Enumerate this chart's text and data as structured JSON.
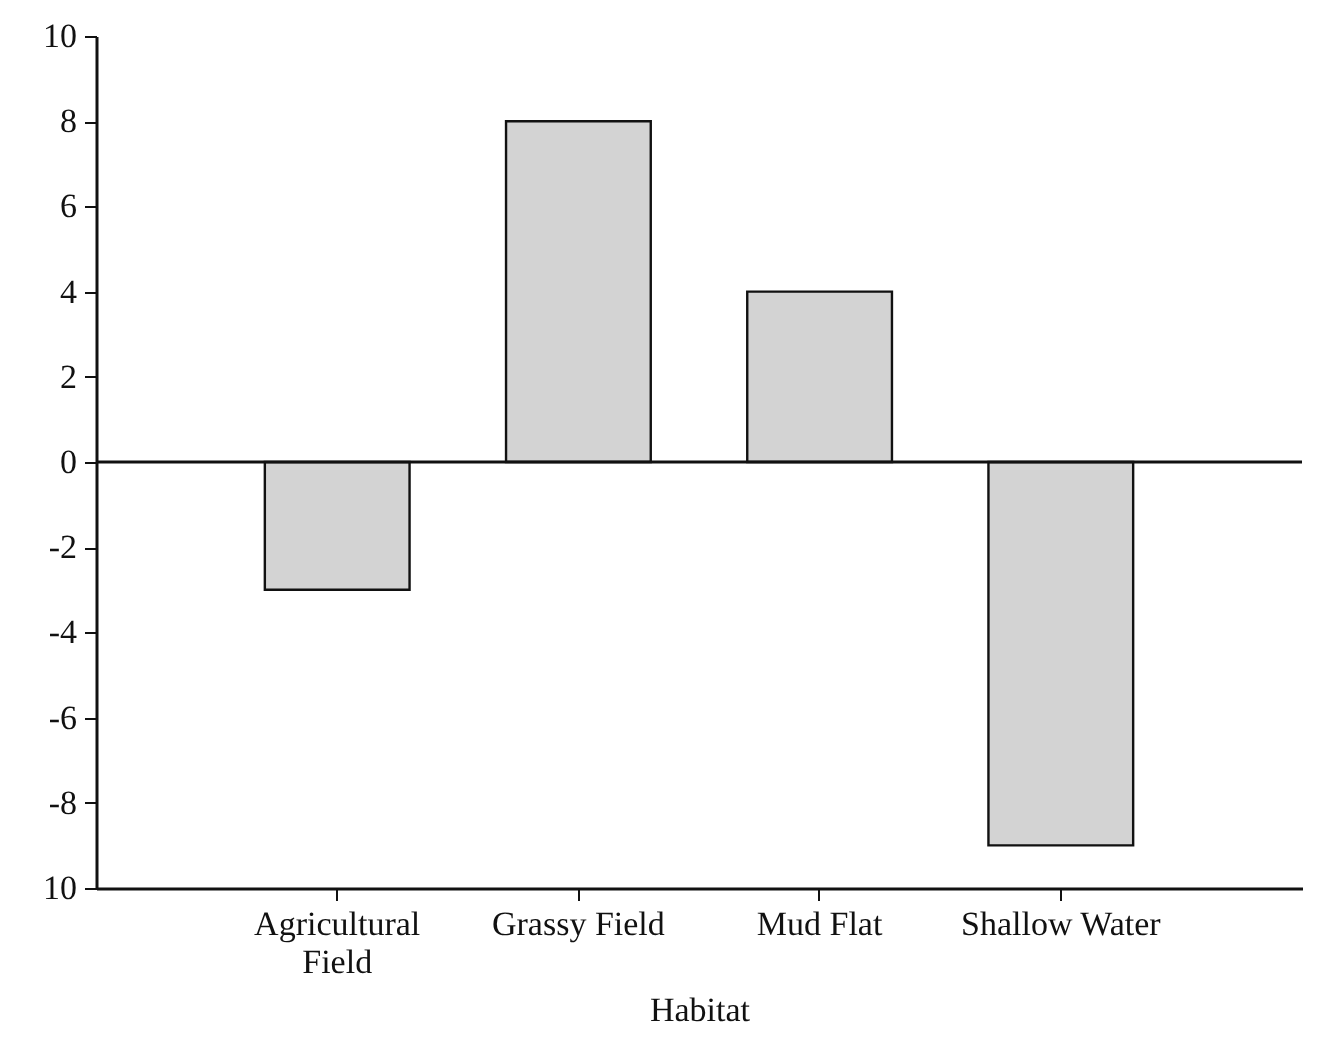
{
  "chart_data": {
    "type": "bar",
    "xlabel": "Habitat",
    "categories": [
      "Agricultural Field",
      "Grassy Field",
      "Mud Flat",
      "Shallow Water"
    ],
    "values": [
      -3,
      8,
      4,
      -9
    ],
    "color": "#d3d3d3",
    "ylim": [
      -10,
      10
    ],
    "yticks": [
      {
        "value": -10,
        "label": "10"
      },
      -8,
      -6,
      -4,
      -2,
      0,
      2,
      4,
      6,
      8,
      10
    ],
    "ref_lines": [
      {
        "axis": "y",
        "value": 0
      }
    ],
    "grid": false
  }
}
